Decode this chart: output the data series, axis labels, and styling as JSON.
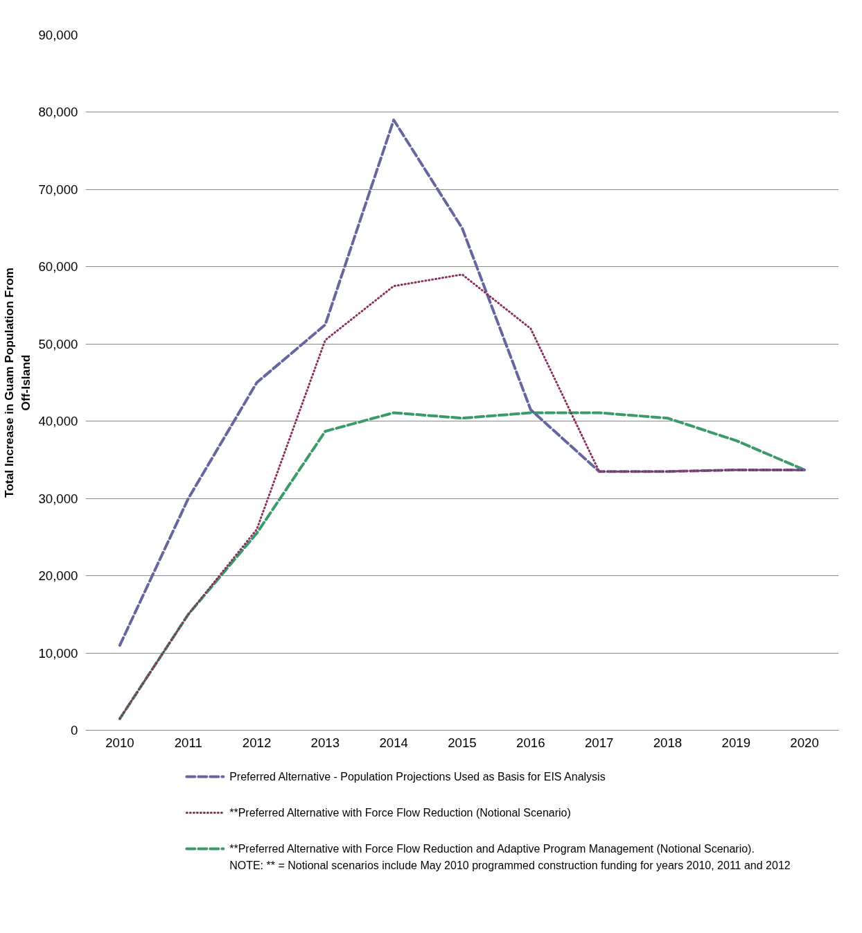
{
  "chart_data": {
    "type": "line",
    "categories": [
      "2010",
      "2011",
      "2012",
      "2013",
      "2014",
      "2015",
      "2016",
      "2017",
      "2018",
      "2019",
      "2020"
    ],
    "ylabel": "Total Increase in Guam Population From Off-Island",
    "ylim": [
      0,
      90000
    ],
    "yticks": [
      {
        "value": 0,
        "label": "0"
      },
      {
        "value": 10000,
        "label": "10,000"
      },
      {
        "value": 20000,
        "label": "20,000"
      },
      {
        "value": 30000,
        "label": "30,000"
      },
      {
        "value": 40000,
        "label": "40,000"
      },
      {
        "value": 50000,
        "label": "50,000"
      },
      {
        "value": 60000,
        "label": "60,000"
      },
      {
        "value": 70000,
        "label": "70,000"
      },
      {
        "value": 80000,
        "label": "80,000"
      },
      {
        "value": 90000,
        "label": "90,000"
      }
    ],
    "grid": "y",
    "legend": "bottom",
    "series": [
      {
        "name": "Preferred Alternative - Population Projections Used as Basis for EIS Analysis",
        "color": "#66669e",
        "line_style": "dashed",
        "values": [
          11000,
          30000,
          45000,
          52500,
          79000,
          65000,
          41500,
          33500,
          33500,
          33700,
          33700
        ]
      },
      {
        "name": "**Preferred Alternative with Force Flow Reduction (Notional Scenario)",
        "color": "#8b2f5e",
        "line_style": "dotted",
        "values": [
          1500,
          15000,
          26000,
          50500,
          57500,
          59000,
          52000,
          33500,
          33500,
          33700,
          33700
        ]
      },
      {
        "name": "**Preferred Alternative with Force Flow Reduction and Adaptive Program Management (Notional Scenario).",
        "color": "#3a9a68",
        "line_style": "dashed",
        "values": [
          1500,
          15000,
          25500,
          38700,
          41100,
          40400,
          41100,
          41100,
          40400,
          37500,
          33700
        ]
      }
    ],
    "annotations": [
      "NOTE: ** =  Notional scenarios include May 2010 programmed construction funding for years 2010, 2011 and 2012"
    ]
  }
}
